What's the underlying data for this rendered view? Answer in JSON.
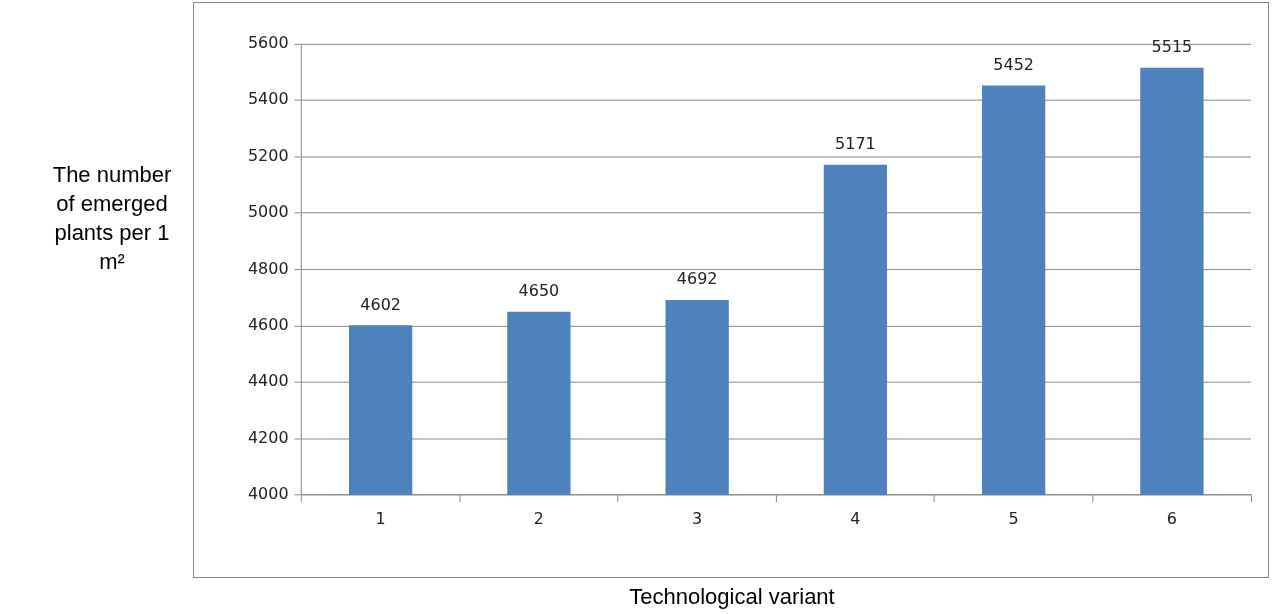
{
  "chart_data": {
    "type": "bar",
    "xlabel": "Technological variant",
    "ylabel": "The number of emerged plants per 1 m²",
    "categories": [
      "1",
      "2",
      "3",
      "4",
      "5",
      "6"
    ],
    "values": [
      4602,
      4650,
      4692,
      5171,
      5452,
      5515
    ],
    "color": "#4f81bd",
    "ylim": [
      4000,
      5600
    ],
    "yticks": [
      4000,
      4200,
      4400,
      4600,
      4800,
      5000,
      5200,
      5400,
      5600
    ],
    "grid": "y",
    "data_labels": true
  }
}
